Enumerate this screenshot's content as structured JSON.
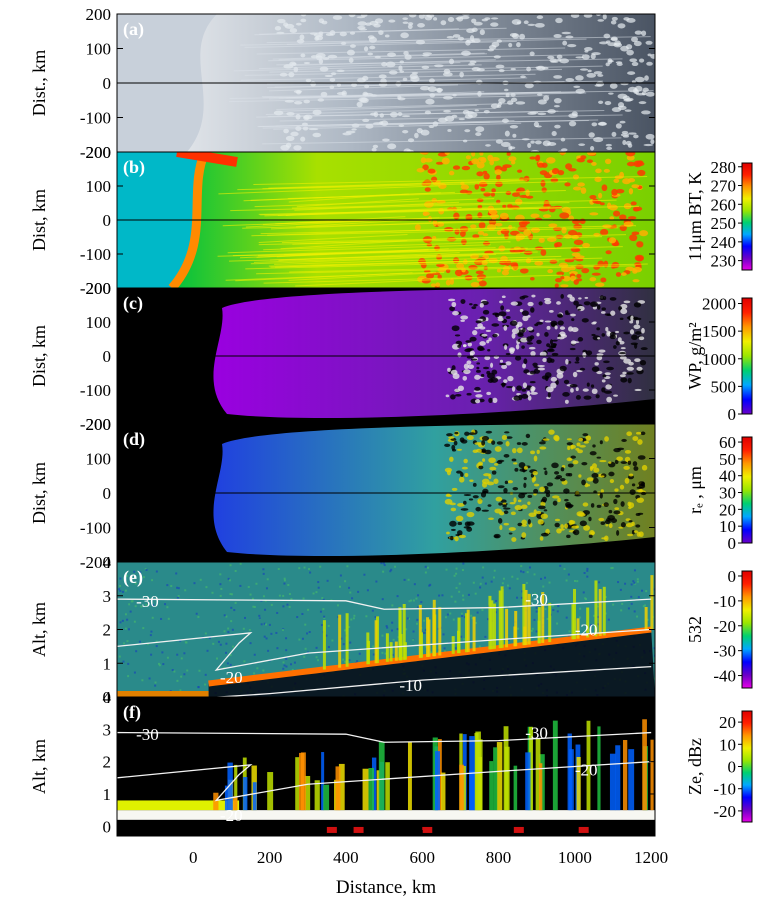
{
  "chart_data": [
    {
      "type": "heatmap",
      "panel": "(a)",
      "ylabel": "Dist., km",
      "yticks": [
        200,
        100,
        0,
        -100,
        -200
      ],
      "ylim": [
        -200,
        200
      ],
      "image": "satellite visible imagery (grayscale)"
    },
    {
      "type": "heatmap",
      "panel": "(b)",
      "ylabel": "Dist, km",
      "yticks": [
        200,
        100,
        0,
        -100,
        -200
      ],
      "ylim": [
        -200,
        200
      ],
      "colorbar": {
        "label": "11μm BT, K",
        "ticks": [
          280,
          270,
          260,
          250,
          240,
          230
        ],
        "range": [
          225,
          282
        ],
        "colors": [
          "#e600e6",
          "#6a00c8",
          "#0000ff",
          "#00a8ff",
          "#00d070",
          "#9ae600",
          "#f0f000",
          "#ff9800",
          "#ff2000",
          "#e00000"
        ]
      }
    },
    {
      "type": "heatmap",
      "panel": "(c)",
      "ylabel": "Dist, km",
      "yticks": [
        200,
        100,
        0,
        -100,
        -200
      ],
      "ylim": [
        -200,
        200
      ],
      "colorbar": {
        "label": "WP, g/m²",
        "ticks": [
          2000,
          1500,
          1000,
          500,
          0
        ],
        "range": [
          0,
          2100
        ],
        "colors": [
          "#6a00c8",
          "#0000ff",
          "#00a8ff",
          "#00d070",
          "#9ae600",
          "#f0f000",
          "#ff9800",
          "#ff2000",
          "#e00000"
        ]
      }
    },
    {
      "type": "heatmap",
      "panel": "(d)",
      "ylabel": "Dist, km",
      "yticks": [
        200,
        100,
        0,
        -100,
        -200
      ],
      "ylim": [
        -200,
        200
      ],
      "colorbar": {
        "label": "rₑ , μm",
        "ticks": [
          60,
          50,
          40,
          30,
          20,
          10,
          0
        ],
        "range": [
          0,
          63
        ],
        "colors": [
          "#6a00c8",
          "#0000ff",
          "#00a8ff",
          "#00d070",
          "#9ae600",
          "#f0f000",
          "#ff9800",
          "#ff2000",
          "#e00000"
        ]
      }
    },
    {
      "type": "heatmap",
      "panel": "(e)",
      "ylabel": "Alt, km",
      "yticks": [
        4,
        3,
        2,
        1,
        0
      ],
      "ylim": [
        0,
        4
      ],
      "contour_labels": [
        "-30",
        "-30",
        "-20",
        "-20",
        "-10"
      ],
      "colorbar": {
        "label": "532",
        "ticks": [
          0,
          -10,
          -20,
          -30,
          -40
        ],
        "range": [
          -45,
          2
        ],
        "colors": [
          "#e600e6",
          "#6a00c8",
          "#0000ff",
          "#00a8ff",
          "#00d070",
          "#9ae600",
          "#f0f000",
          "#ff9800",
          "#ff2000",
          "#e00000"
        ]
      }
    },
    {
      "type": "heatmap",
      "panel": "(f)",
      "ylabel": "Alt, km",
      "yticks": [
        4,
        3,
        2,
        1,
        0
      ],
      "ylim": [
        -0.3,
        4
      ],
      "contour_labels": [
        "-30",
        "-30",
        "-20",
        "-20"
      ],
      "colorbar": {
        "label": "Ze, dBz",
        "ticks": [
          20,
          10,
          0,
          -10,
          -20
        ],
        "range": [
          -25,
          25
        ],
        "colors": [
          "#e600e6",
          "#6a00c8",
          "#0000ff",
          "#00a8ff",
          "#00d070",
          "#9ae600",
          "#f0f000",
          "#ff9800",
          "#ff2000",
          "#e00000"
        ]
      },
      "xlabel": "Distance, km",
      "xticks": [
        0,
        200,
        400,
        600,
        800,
        1000,
        1200
      ],
      "xlim": [
        -200,
        1210
      ]
    }
  ]
}
